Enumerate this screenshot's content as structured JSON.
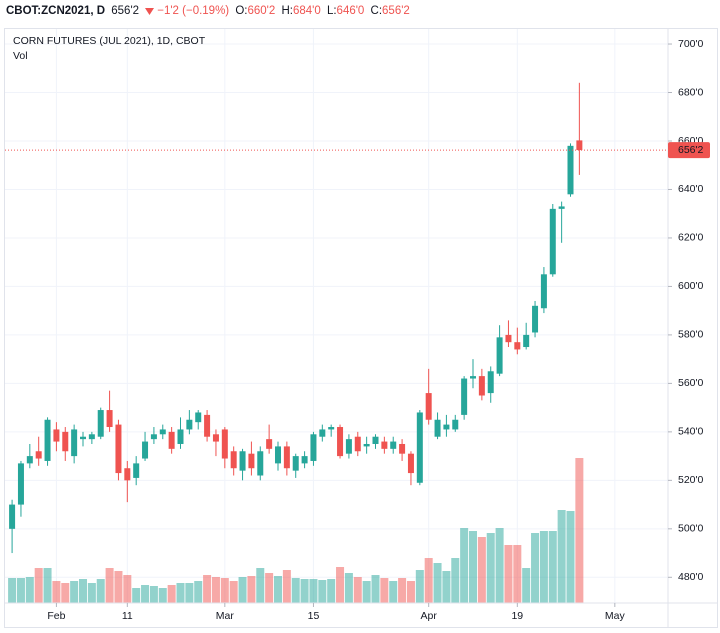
{
  "header": {
    "symbol": "CBOT:ZCN2021, D",
    "last": "656'2",
    "change": "−1'2 (−0.19%)",
    "ohlc": [
      {
        "label": "O:",
        "value": "660'2"
      },
      {
        "label": "H:",
        "value": "684'0"
      },
      {
        "label": "L:",
        "value": "646'0"
      },
      {
        "label": "C:",
        "value": "656'2"
      }
    ]
  },
  "chart_data": {
    "type": "candlestick",
    "title": "CORN FUTURES (JUL 2021), 1D, CBOT",
    "volume_label": "Vol",
    "up_color": "#26a69a",
    "down_color": "#ef5350",
    "grid": true,
    "open": [
      500,
      510,
      527,
      532,
      528,
      541,
      540,
      530,
      537,
      537,
      538,
      549,
      543,
      525,
      521,
      529,
      537,
      539,
      540,
      535,
      541,
      544,
      547,
      539,
      541,
      532,
      524,
      531,
      522,
      537,
      527,
      534,
      524,
      527,
      528,
      538,
      541,
      542,
      531,
      538,
      534,
      535,
      536,
      533,
      535,
      531,
      519,
      556,
      538,
      541,
      541,
      547,
      562,
      563,
      556,
      564,
      580,
      577,
      575,
      581,
      591,
      605,
      632,
      638,
      660.25
    ],
    "high": [
      512,
      528,
      535,
      538,
      546,
      544,
      542,
      543,
      540,
      540,
      550,
      557,
      545,
      528,
      530,
      540,
      542,
      543,
      542,
      546,
      549,
      549,
      549,
      541,
      542,
      534,
      533,
      536,
      534,
      543,
      536,
      536,
      531,
      532,
      540,
      543,
      543,
      543,
      539,
      540,
      538,
      539,
      538,
      538,
      537,
      532,
      549,
      566,
      548,
      547,
      547,
      563,
      570,
      566,
      567,
      584,
      586,
      583,
      585,
      594,
      608,
      634,
      635,
      659,
      684
    ],
    "low": [
      490,
      505,
      525,
      526,
      526,
      532,
      528,
      527,
      534,
      535,
      537,
      540,
      520,
      511,
      518,
      528,
      535,
      537,
      531,
      533,
      539,
      541,
      536,
      530,
      525,
      522,
      520,
      522,
      520,
      531,
      524,
      522,
      521,
      525,
      526,
      536,
      538,
      529,
      529,
      530,
      531,
      533,
      531,
      531,
      528,
      518,
      518,
      543,
      537,
      538,
      540,
      545,
      558,
      553,
      552,
      563,
      575,
      572,
      574,
      579,
      589,
      604,
      618,
      637,
      646
    ],
    "close": [
      510,
      527,
      530,
      529,
      545,
      536,
      532,
      541,
      538,
      539,
      549,
      542,
      523,
      520,
      527,
      536,
      539,
      541,
      533,
      541,
      545,
      548,
      538,
      536,
      529,
      525,
      532,
      525,
      532,
      533,
      534,
      525,
      530,
      530,
      539,
      541,
      542,
      530,
      537,
      532,
      535,
      538,
      533,
      536,
      531,
      523,
      548,
      545,
      545,
      543,
      545,
      562,
      563,
      555,
      565,
      579,
      577,
      574,
      580,
      592,
      605,
      632,
      633,
      658,
      656.25
    ],
    "volume": [
      25,
      25,
      26,
      35,
      35,
      22,
      20,
      22,
      24,
      20,
      24,
      35,
      32,
      28,
      15,
      18,
      17,
      15,
      18,
      20,
      20,
      22,
      28,
      26,
      25,
      22,
      26,
      27,
      35,
      30,
      27,
      33,
      25,
      24,
      24,
      23,
      24,
      36,
      30,
      26,
      22,
      28,
      25,
      22,
      25,
      22,
      33,
      45,
      40,
      32,
      45,
      75,
      72,
      66,
      70,
      75,
      58,
      58,
      35,
      70,
      72,
      72,
      93,
      92,
      145
    ],
    "last_price": {
      "value": 656.25,
      "label": "656'2"
    },
    "ylim": [
      469.4,
      706.2
    ],
    "yticks": [
      {
        "value": 480,
        "label": "480'0"
      },
      {
        "value": 500,
        "label": "500'0"
      },
      {
        "value": 520,
        "label": "520'0"
      },
      {
        "value": 540,
        "label": "540'0"
      },
      {
        "value": 560,
        "label": "560'0"
      },
      {
        "value": 580,
        "label": "580'0"
      },
      {
        "value": 600,
        "label": "600'0"
      },
      {
        "value": 620,
        "label": "620'0"
      },
      {
        "value": 640,
        "label": "640'0"
      },
      {
        "value": 660,
        "label": "660'0"
      },
      {
        "value": 680,
        "label": "680'0"
      },
      {
        "value": 700,
        "label": "700'0"
      }
    ],
    "xlim": [
      -0.8,
      74
    ],
    "xticks": [
      {
        "value": 5,
        "label": "Feb"
      },
      {
        "value": 13,
        "label": "11"
      },
      {
        "value": 24,
        "label": "Mar"
      },
      {
        "value": 34,
        "label": "15"
      },
      {
        "value": 47,
        "label": "Apr"
      },
      {
        "value": 57,
        "label": "19"
      },
      {
        "value": 68,
        "label": "May"
      }
    ]
  }
}
